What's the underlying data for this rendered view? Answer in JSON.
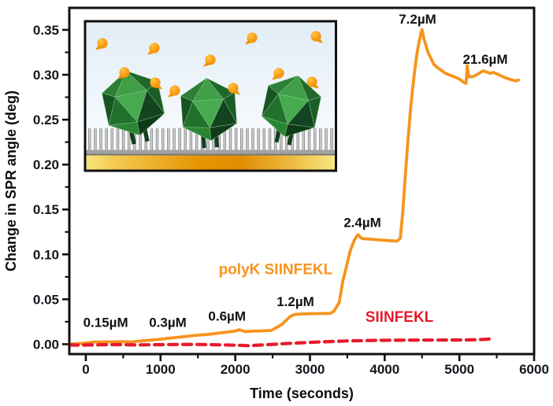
{
  "chart_data": {
    "type": "line",
    "title": "",
    "xlabel": "Time (seconds)",
    "ylabel": "Change in SPR angle (deg)",
    "xlim": [
      -221,
      6000
    ],
    "ylim": [
      -0.011,
      0.3745
    ],
    "grid": false,
    "xticks": {
      "major": [
        0,
        1000,
        2000,
        3000,
        4000,
        5000,
        6000
      ],
      "labels": [
        "0",
        "1000",
        "2000",
        "3000",
        "4000",
        "5000",
        "6000"
      ],
      "minor": [
        500,
        1500,
        2500,
        3500,
        4500,
        5500
      ]
    },
    "yticks": {
      "major": [
        0.0,
        0.05,
        0.1,
        0.15,
        0.2,
        0.25,
        0.3,
        0.35
      ],
      "labels": [
        "0.00",
        "0.05",
        "0.10",
        "0.15",
        "0.20",
        "0.25",
        "0.30",
        "0.35"
      ],
      "minor": [
        0.025,
        0.075,
        0.125,
        0.175,
        0.225,
        0.275,
        0.325
      ]
    },
    "series": [
      {
        "name": "polyK SIINFEKL",
        "color": "#F6941D",
        "style": "solid",
        "points": [
          [
            -220,
            0.0002
          ],
          [
            -120,
            0.0006
          ],
          [
            -30,
            0.001
          ],
          [
            40,
            0.0016
          ],
          [
            100,
            0.0024
          ],
          [
            200,
            0.0026
          ],
          [
            350,
            0.0026
          ],
          [
            500,
            0.0028
          ],
          [
            620,
            0.0026
          ],
          [
            700,
            0.0034
          ],
          [
            800,
            0.0042
          ],
          [
            900,
            0.0048
          ],
          [
            1000,
            0.0056
          ],
          [
            1100,
            0.0065
          ],
          [
            1200,
            0.0074
          ],
          [
            1300,
            0.0083
          ],
          [
            1400,
            0.0092
          ],
          [
            1500,
            0.01
          ],
          [
            1630,
            0.0109
          ],
          [
            1750,
            0.012
          ],
          [
            1870,
            0.0133
          ],
          [
            1990,
            0.0145
          ],
          [
            2050,
            0.0161
          ],
          [
            2090,
            0.0152
          ],
          [
            2130,
            0.014
          ],
          [
            2220,
            0.0145
          ],
          [
            2330,
            0.0148
          ],
          [
            2480,
            0.0153
          ],
          [
            2550,
            0.0184
          ],
          [
            2620,
            0.0217
          ],
          [
            2690,
            0.0274
          ],
          [
            2745,
            0.0314
          ],
          [
            2790,
            0.0329
          ],
          [
            2860,
            0.0335
          ],
          [
            2960,
            0.0339
          ],
          [
            3110,
            0.0341
          ],
          [
            3270,
            0.0343
          ],
          [
            3320,
            0.0367
          ],
          [
            3390,
            0.0461
          ],
          [
            3440,
            0.0702
          ],
          [
            3490,
            0.0872
          ],
          [
            3540,
            0.1042
          ],
          [
            3590,
            0.1152
          ],
          [
            3625,
            0.1202
          ],
          [
            3645,
            0.1219
          ],
          [
            3675,
            0.1188
          ],
          [
            3700,
            0.1176
          ],
          [
            3820,
            0.1169
          ],
          [
            3960,
            0.1159
          ],
          [
            4110,
            0.1151
          ],
          [
            4170,
            0.1148
          ],
          [
            4210,
            0.1182
          ],
          [
            4240,
            0.1452
          ],
          [
            4270,
            0.1802
          ],
          [
            4310,
            0.2252
          ],
          [
            4350,
            0.2652
          ],
          [
            4395,
            0.3002
          ],
          [
            4430,
            0.3222
          ],
          [
            4460,
            0.3362
          ],
          [
            4485,
            0.3462
          ],
          [
            4500,
            0.3502
          ],
          [
            4525,
            0.3402
          ],
          [
            4550,
            0.3332
          ],
          [
            4580,
            0.3252
          ],
          [
            4620,
            0.3182
          ],
          [
            4660,
            0.3112
          ],
          [
            4720,
            0.3072
          ],
          [
            4810,
            0.3018
          ],
          [
            4920,
            0.2982
          ],
          [
            5010,
            0.2948
          ],
          [
            5060,
            0.2914
          ],
          [
            5090,
            0.2904
          ],
          [
            5105,
            0.3102
          ],
          [
            5125,
            0.2977
          ],
          [
            5190,
            0.2982
          ],
          [
            5260,
            0.3014
          ],
          [
            5320,
            0.3044
          ],
          [
            5365,
            0.303
          ],
          [
            5410,
            0.3018
          ],
          [
            5455,
            0.3026
          ],
          [
            5530,
            0.3
          ],
          [
            5610,
            0.2968
          ],
          [
            5700,
            0.2944
          ],
          [
            5755,
            0.2932
          ],
          [
            5790,
            0.2942
          ]
        ]
      },
      {
        "name": "SIINFEKL",
        "color": "#E81A2B",
        "style": "dashed",
        "points": [
          [
            -220,
            -0.0008
          ],
          [
            -100,
            -0.001
          ],
          [
            50,
            -0.0008
          ],
          [
            250,
            -0.0006
          ],
          [
            450,
            -0.0005
          ],
          [
            650,
            -0.0008
          ],
          [
            850,
            -0.0007
          ],
          [
            1050,
            -0.0005
          ],
          [
            1250,
            -0.0003
          ],
          [
            1450,
            -0.0002
          ],
          [
            1650,
            -0.0005
          ],
          [
            1850,
            -0.0008
          ],
          [
            2050,
            -0.0012
          ],
          [
            2180,
            -0.0017
          ],
          [
            2320,
            -0.001
          ],
          [
            2500,
            -0.0002
          ],
          [
            2700,
            0.0008
          ],
          [
            2900,
            0.0016
          ],
          [
            3100,
            0.0024
          ],
          [
            3300,
            0.003
          ],
          [
            3500,
            0.0036
          ],
          [
            3700,
            0.004
          ],
          [
            3900,
            0.0043
          ],
          [
            4100,
            0.0044
          ],
          [
            4300,
            0.0045
          ],
          [
            4500,
            0.0046
          ],
          [
            4700,
            0.0046
          ],
          [
            4900,
            0.0047
          ],
          [
            5100,
            0.0048
          ],
          [
            5250,
            0.005
          ],
          [
            5360,
            0.0055
          ],
          [
            5450,
            0.0062
          ]
        ]
      }
    ],
    "annotations": [
      {
        "text": "0.15µM",
        "x": 265,
        "y": 0.0247,
        "color": "#121212",
        "size": 17
      },
      {
        "text": "0.3µM",
        "x": 1097,
        "y": 0.0247,
        "color": "#121212",
        "size": 17
      },
      {
        "text": "0.6µM",
        "x": 1890,
        "y": 0.0315,
        "color": "#121212",
        "size": 17
      },
      {
        "text": "1.2µM",
        "x": 2805,
        "y": 0.0476,
        "color": "#121212",
        "size": 17
      },
      {
        "text": "2.4µM",
        "x": 3701,
        "y": 0.1358,
        "color": "#121212",
        "size": 17
      },
      {
        "text": "7.2µM",
        "x": 4440,
        "y": 0.3624,
        "color": "#121212",
        "size": 17
      },
      {
        "text": "21.6µM",
        "x": 5346,
        "y": 0.3175,
        "color": "#121212",
        "size": 17
      },
      {
        "text": "polyK SIINFEKL",
        "x": 2541,
        "y": 0.0838,
        "color": "#F6941D",
        "size": 19
      },
      {
        "text": "SIINFEKL",
        "x": 4197,
        "y": 0.0309,
        "color": "#E81A2B",
        "size": 19
      }
    ],
    "legend_position": "inline-labels"
  },
  "inset": {
    "illustration": "virus-particles-bound-to-polymer-brush-on-gold-film",
    "virus_count": 3,
    "peptide_droplet_count": 11,
    "accent_colors": {
      "virus_green": "#2c7f35",
      "peptide_orange": "#F6941D",
      "gold_film": "#E69504"
    }
  }
}
